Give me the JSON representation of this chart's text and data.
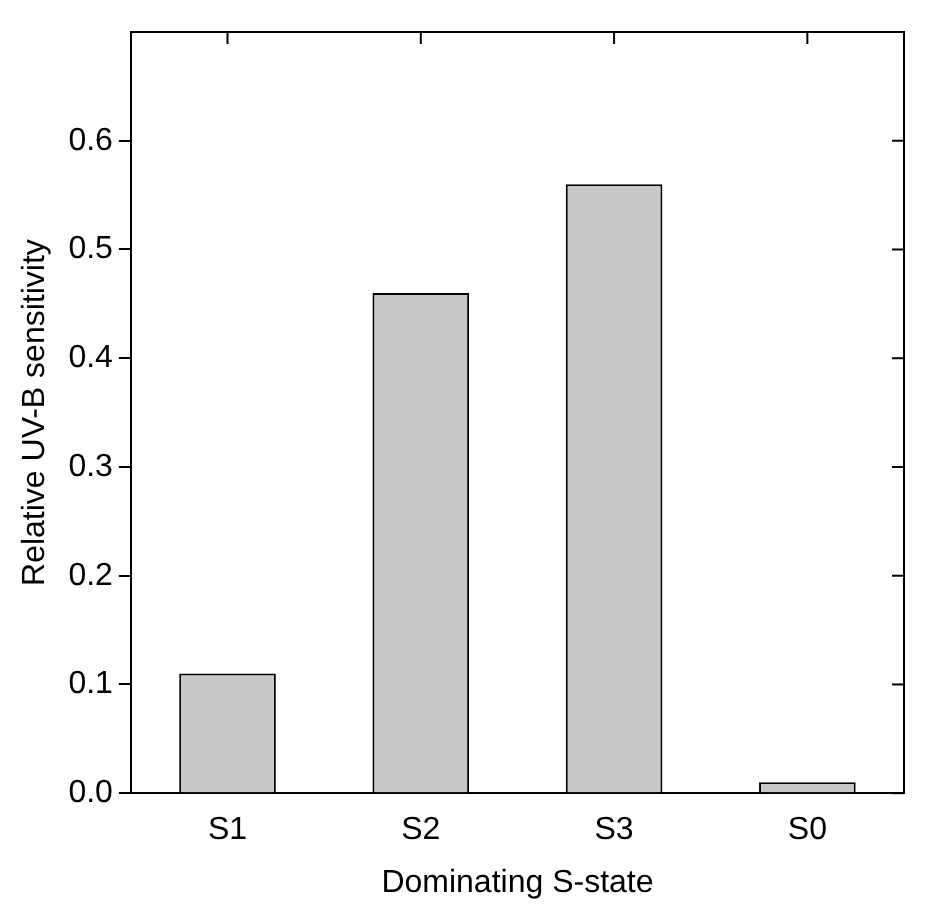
{
  "chart_data": {
    "type": "bar",
    "xlabel": "Dominating S-state",
    "ylabel": "Relative UV-B sensitivity",
    "categories": [
      "S1",
      "S2",
      "S3",
      "S0"
    ],
    "series": [
      {
        "color": "#c8c8c8",
        "values": [
          0.11,
          0.46,
          0.56,
          0.01
        ]
      }
    ],
    "ylim": [
      0,
      0.7
    ],
    "yticks": [
      {
        "value": 0,
        "label": "0.0"
      },
      0.1,
      0.2,
      0.3,
      0.4,
      0.5,
      0.6
    ],
    "grid": false,
    "legend": false
  }
}
